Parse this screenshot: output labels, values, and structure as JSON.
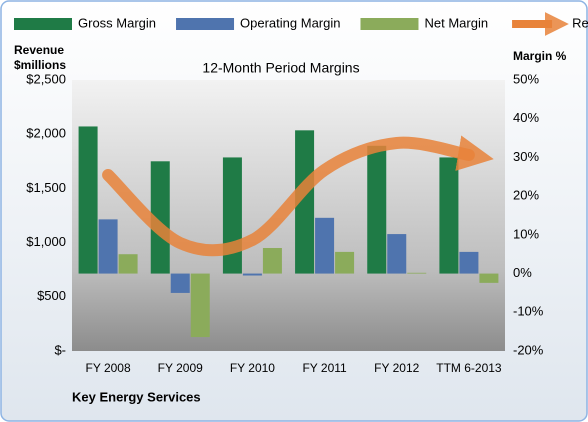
{
  "chart_data": {
    "type": "combo",
    "title": "12-Month Period Margins",
    "ylabel": [
      "Revenue",
      "$millions"
    ],
    "y2label": "Margin %",
    "footer": "Key Energy Services",
    "categories": [
      "FY 2008",
      "FY 2009",
      "FY 2010",
      "FY 2011",
      "FY 2012",
      "TTM 6-2013"
    ],
    "ylim": [
      0,
      2500
    ],
    "yticks": [
      {
        "value": 0,
        "label": "$-"
      },
      {
        "value": 500,
        "label": "$500"
      },
      {
        "value": 1000,
        "label": "$1,000"
      },
      {
        "value": 1500,
        "label": "$1,500"
      },
      {
        "value": 2000,
        "label": "$2,000"
      },
      {
        "value": 2500,
        "label": "$2,500"
      }
    ],
    "y2lim": [
      -20,
      50
    ],
    "y2ticks": [
      {
        "value": -20,
        "label": "-20%"
      },
      {
        "value": -10,
        "label": "-10%"
      },
      {
        "value": 0,
        "label": "0%"
      },
      {
        "value": 10,
        "label": "10%"
      },
      {
        "value": 20,
        "label": "20%"
      },
      {
        "value": 30,
        "label": "30%"
      },
      {
        "value": 40,
        "label": "40%"
      },
      {
        "value": 50,
        "label": "50%"
      }
    ],
    "series": [
      {
        "name": "Gross Margin",
        "type": "bar",
        "axis": "y2",
        "color": "#1f7b46",
        "values": [
          38,
          29,
          30,
          37,
          33,
          30
        ]
      },
      {
        "name": "Operating Margin",
        "type": "bar",
        "axis": "y2",
        "color": "#4f74ae",
        "values": [
          14,
          -5,
          -0.5,
          14.4,
          10.2,
          5.6
        ]
      },
      {
        "name": "Net Margin",
        "type": "bar",
        "axis": "y2",
        "color": "#8bab5b",
        "values": [
          5,
          -16.4,
          6.6,
          5.6,
          0.2,
          -2.4
        ]
      },
      {
        "name": "Revenues",
        "type": "line",
        "axis": "y",
        "color": "#e8833a",
        "values": [
          1624,
          996,
          1024,
          1670,
          1919,
          1808
        ]
      }
    ]
  }
}
